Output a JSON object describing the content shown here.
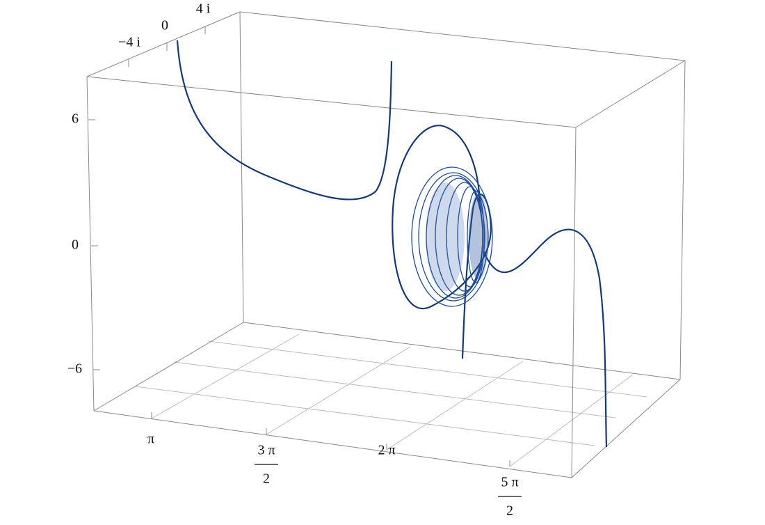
{
  "axes": {
    "x_ticks": [
      "π",
      {
        "numerator": "3 π",
        "denominator": "2"
      },
      "2 π",
      {
        "numerator": "5 π",
        "denominator": "2"
      }
    ],
    "y_ticks": [
      "−4 i",
      "0",
      "4 i"
    ],
    "z_ticks": [
      "6",
      "0",
      "−6"
    ]
  }
}
